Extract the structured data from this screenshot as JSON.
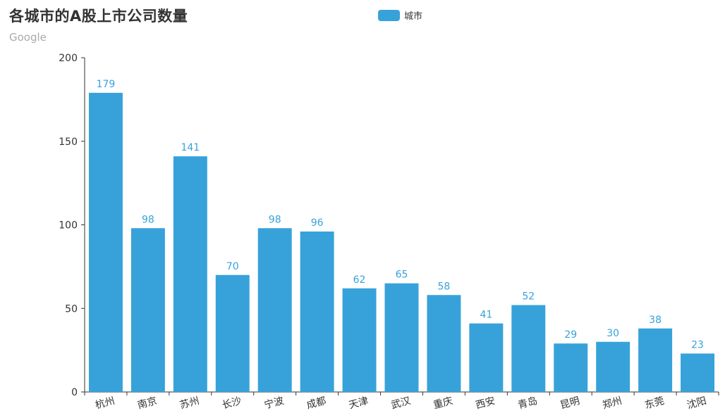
{
  "title": "各城市的A股上市公司数量",
  "subtitle": "Google",
  "legend": {
    "label": "城市",
    "color": "#37a2da"
  },
  "chart_data": {
    "type": "bar",
    "title": "各城市的A股上市公司数量",
    "subtitle": "Google",
    "xlabel": "",
    "ylabel": "",
    "ylim": [
      0,
      200
    ],
    "yticks": [
      0,
      50,
      100,
      150,
      200
    ],
    "categories": [
      "杭州",
      "南京",
      "苏州",
      "长沙",
      "宁波",
      "成都",
      "天津",
      "武汉",
      "重庆",
      "西安",
      "青岛",
      "昆明",
      "郑州",
      "东莞",
      "沈阳"
    ],
    "series": [
      {
        "name": "城市",
        "color": "#37a2da",
        "values": [
          179,
          98,
          141,
          70,
          98,
          96,
          62,
          65,
          58,
          41,
          52,
          29,
          30,
          38,
          23
        ]
      }
    ],
    "legend_position": "top-center",
    "grid": false
  }
}
